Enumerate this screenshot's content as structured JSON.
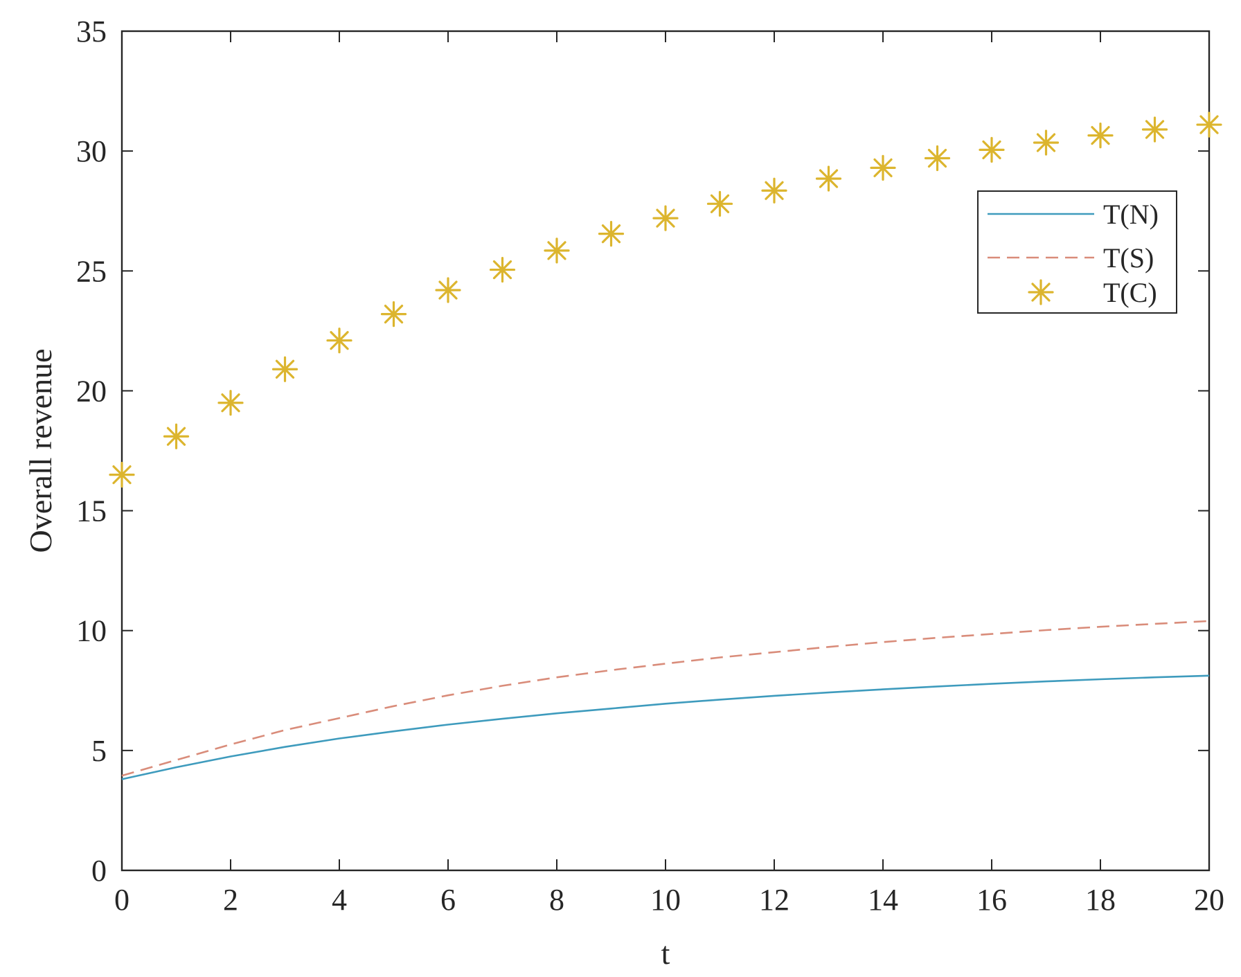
{
  "chart_data": {
    "type": "line",
    "title": "",
    "xlabel": "t",
    "ylabel": "Overall revenue",
    "xlim": [
      0,
      20
    ],
    "ylim": [
      0,
      35
    ],
    "xticks": [
      0,
      2,
      4,
      6,
      8,
      10,
      12,
      14,
      16,
      18,
      20
    ],
    "yticks": [
      0,
      5,
      10,
      15,
      20,
      25,
      30,
      35
    ],
    "grid": false,
    "legend_position": "upper-right",
    "series": [
      {
        "name": "T(N)",
        "style": "solid",
        "color": "#3e9bbd",
        "x": [
          0,
          1,
          2,
          3,
          4,
          5,
          6,
          7,
          8,
          9,
          10,
          11,
          12,
          13,
          14,
          15,
          16,
          17,
          18,
          19,
          20
        ],
        "values": [
          3.8,
          4.3,
          4.75,
          5.15,
          5.5,
          5.8,
          6.08,
          6.32,
          6.55,
          6.75,
          6.95,
          7.12,
          7.28,
          7.42,
          7.55,
          7.67,
          7.78,
          7.88,
          7.97,
          8.05,
          8.12
        ]
      },
      {
        "name": "T(S)",
        "style": "dashed",
        "color": "#d98c7a",
        "x": [
          0,
          1,
          2,
          3,
          4,
          5,
          6,
          7,
          8,
          9,
          10,
          11,
          12,
          13,
          14,
          15,
          16,
          17,
          18,
          19,
          20
        ],
        "values": [
          3.95,
          4.6,
          5.25,
          5.85,
          6.35,
          6.85,
          7.3,
          7.7,
          8.05,
          8.35,
          8.62,
          8.88,
          9.1,
          9.32,
          9.52,
          9.7,
          9.86,
          10.02,
          10.16,
          10.28,
          10.4
        ]
      },
      {
        "name": "T(C)",
        "style": "markers",
        "marker": "asterisk",
        "color": "#dcb52e",
        "x": [
          0,
          1,
          2,
          3,
          4,
          5,
          6,
          7,
          8,
          9,
          10,
          11,
          12,
          13,
          14,
          15,
          16,
          17,
          18,
          19,
          20
        ],
        "values": [
          16.5,
          18.1,
          19.5,
          20.9,
          22.1,
          23.2,
          24.2,
          25.05,
          25.85,
          26.55,
          27.2,
          27.8,
          28.35,
          28.85,
          29.3,
          29.7,
          30.05,
          30.35,
          30.65,
          30.9,
          31.1
        ]
      }
    ]
  }
}
